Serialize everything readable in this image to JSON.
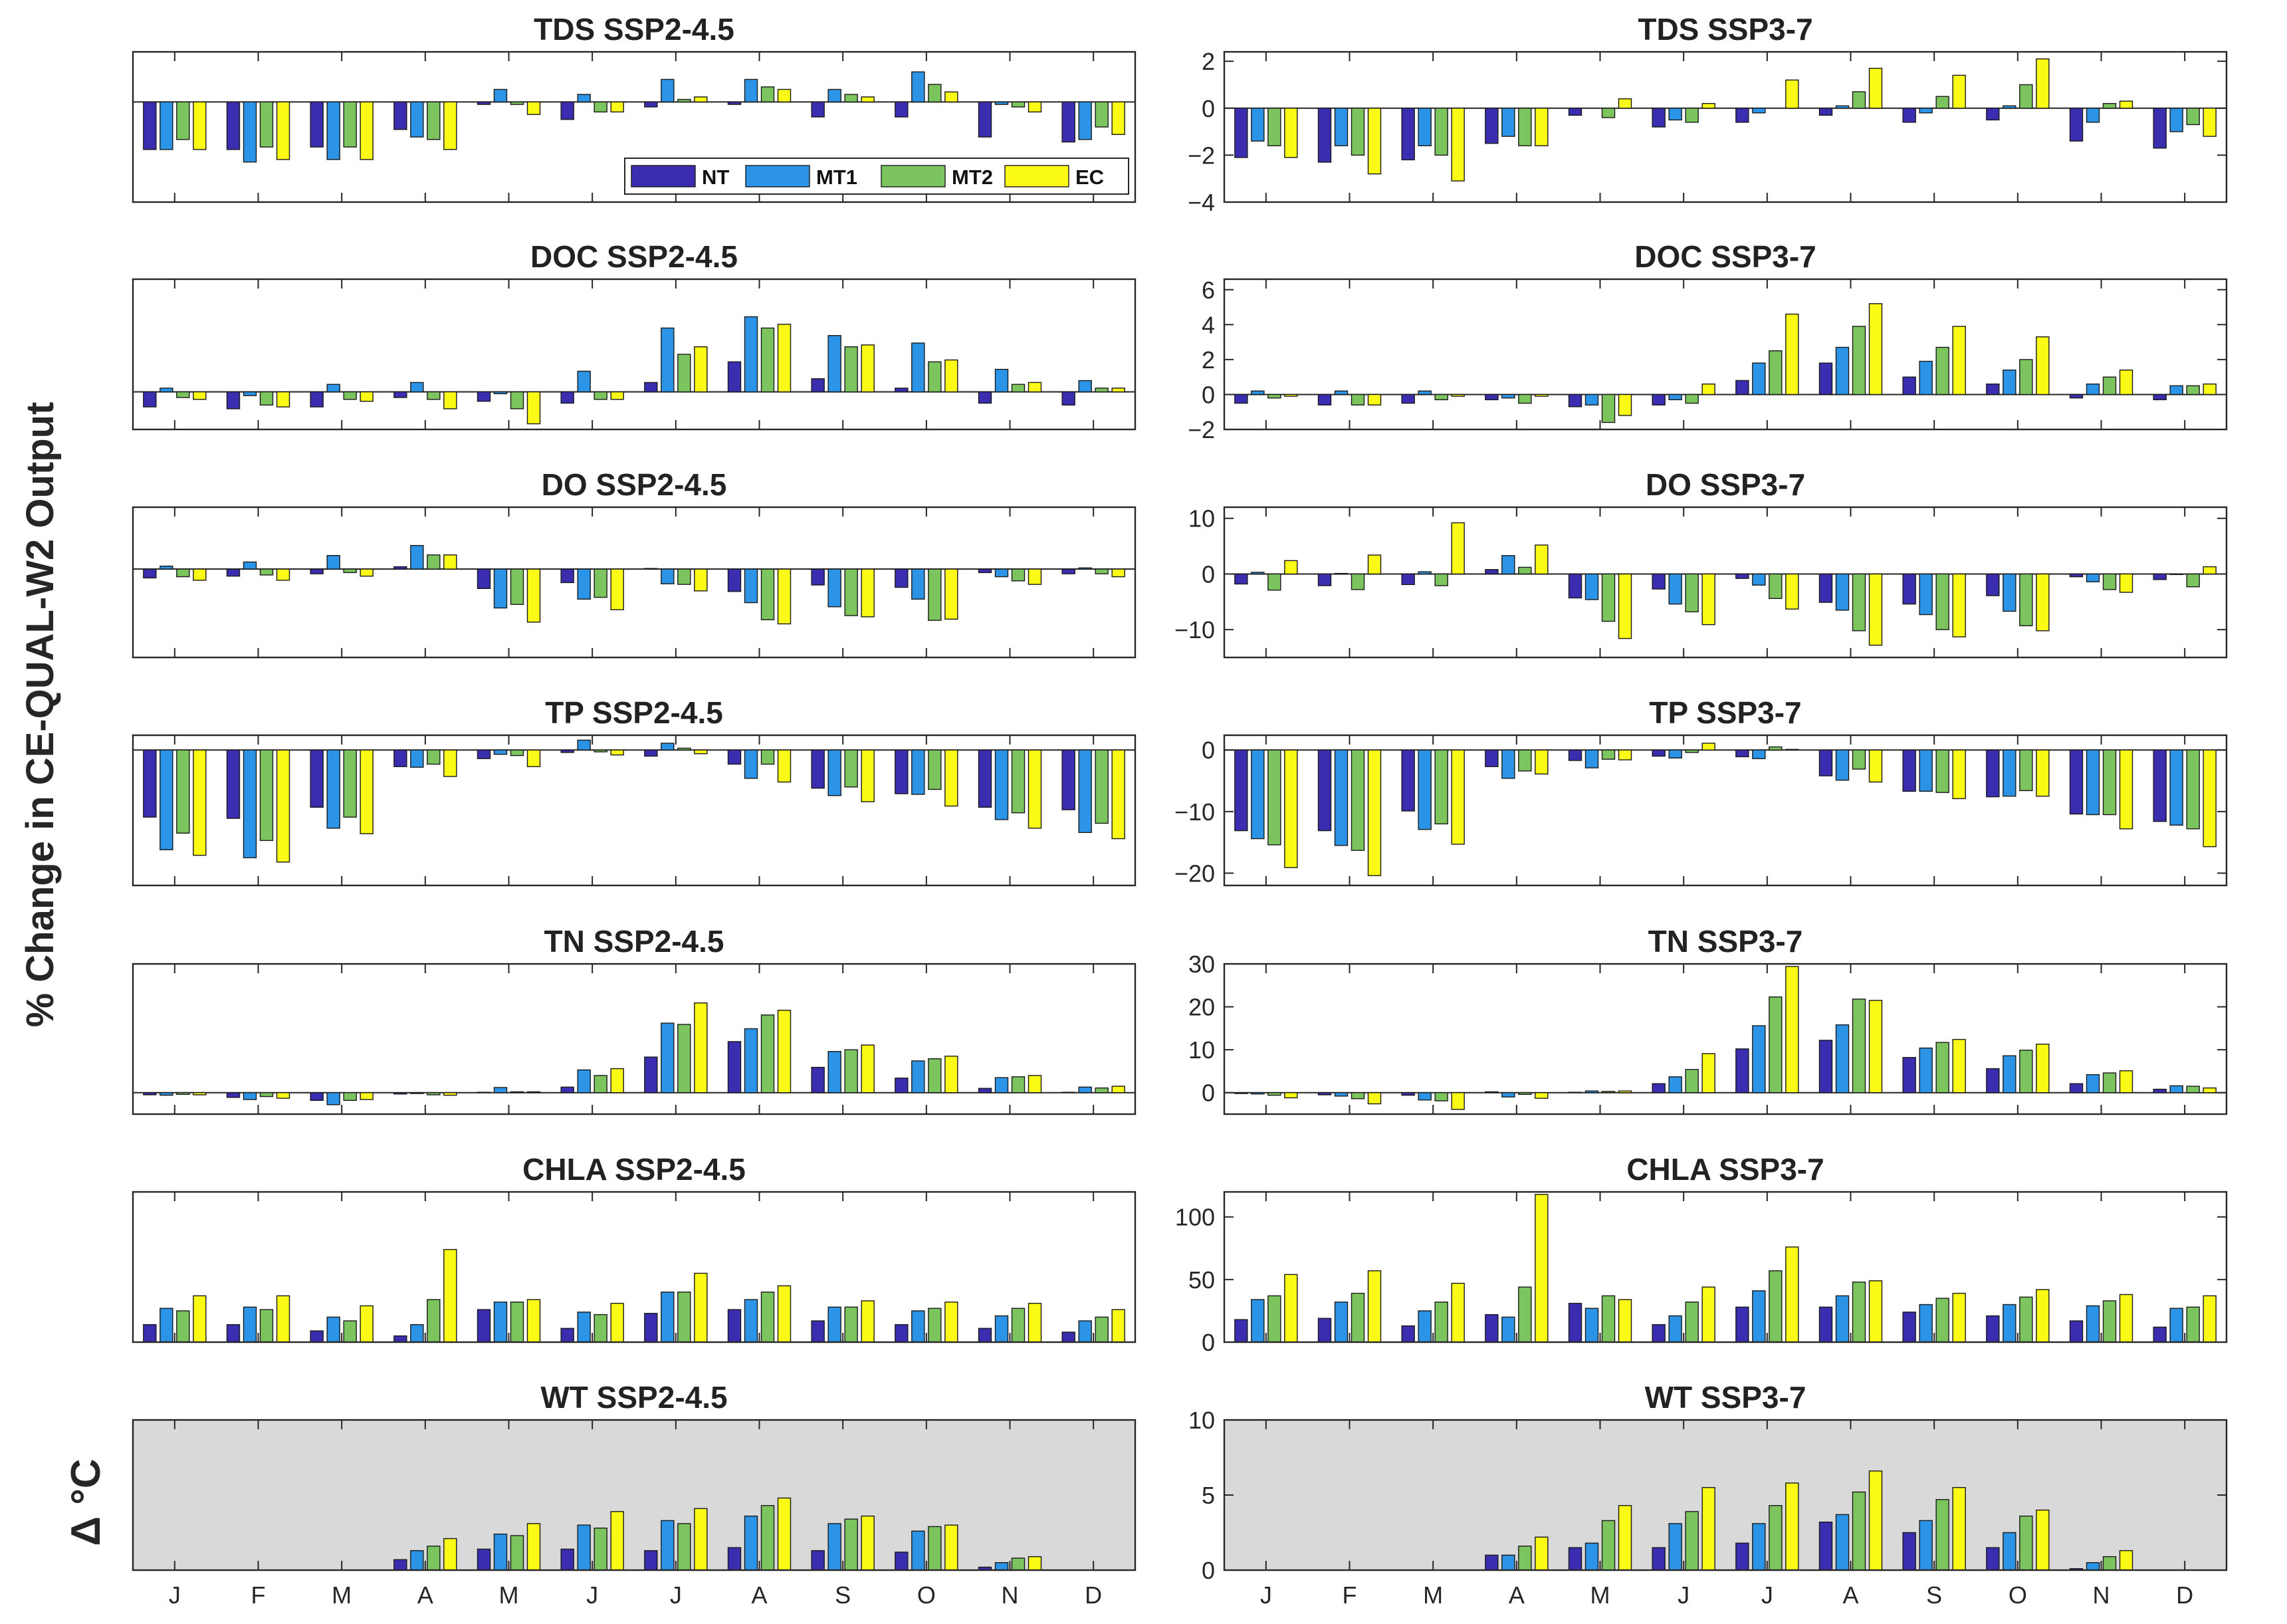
{
  "figure": {
    "ylabel": "% Change in CE-QUAL-W2 Output",
    "ylabel_wt": "Δ °C"
  },
  "legend": {
    "series": [
      "NT",
      "MT1",
      "MT2",
      "EC"
    ],
    "colors": [
      "#3b2db0",
      "#2c94e6",
      "#7cc45e",
      "#fbfa16"
    ]
  },
  "months": [
    "J",
    "F",
    "M",
    "A",
    "M",
    "J",
    "J",
    "A",
    "S",
    "O",
    "N",
    "D"
  ],
  "chart_data": [
    {
      "type": "bar",
      "title": "TDS SSP2-4.5",
      "ylim": [
        -4,
        2
      ],
      "yticks": [],
      "shade": false,
      "legend": true,
      "series": [
        {
          "name": "NT",
          "values": [
            -1.9,
            -1.9,
            -1.8,
            -1.1,
            -0.1,
            -0.7,
            -0.2,
            -0.1,
            -0.6,
            -0.6,
            -1.4,
            -1.6
          ]
        },
        {
          "name": "MT1",
          "values": [
            -1.9,
            -2.4,
            -2.3,
            -1.4,
            0.5,
            0.3,
            0.9,
            0.9,
            0.5,
            1.2,
            -0.1,
            -1.5
          ]
        },
        {
          "name": "MT2",
          "values": [
            -1.5,
            -1.8,
            -1.8,
            -1.5,
            -0.1,
            -0.4,
            0.1,
            0.6,
            0.3,
            0.7,
            -0.2,
            -1.0
          ]
        },
        {
          "name": "EC",
          "values": [
            -1.9,
            -2.3,
            -2.3,
            -1.9,
            -0.5,
            -0.4,
            0.2,
            0.5,
            0.2,
            0.4,
            -0.4,
            -1.3
          ]
        }
      ]
    },
    {
      "type": "bar",
      "title": "TDS SSP3-7",
      "ylim": [
        -4,
        2.4
      ],
      "yticks": [
        2,
        0,
        -2,
        -4
      ],
      "shade": false,
      "legend": false,
      "series": [
        {
          "name": "NT",
          "values": [
            -2.1,
            -2.3,
            -2.2,
            -1.5,
            -0.3,
            -0.8,
            -0.6,
            -0.3,
            -0.6,
            -0.5,
            -1.4,
            -1.7
          ]
        },
        {
          "name": "MT1",
          "values": [
            -1.4,
            -1.6,
            -1.6,
            -1.2,
            0.0,
            -0.5,
            -0.2,
            0.1,
            -0.2,
            0.1,
            -0.6,
            -1.0
          ]
        },
        {
          "name": "MT2",
          "values": [
            -1.6,
            -2.0,
            -2.0,
            -1.6,
            -0.4,
            -0.6,
            0.0,
            0.7,
            0.5,
            1.0,
            0.2,
            -0.7
          ]
        },
        {
          "name": "EC",
          "values": [
            -2.1,
            -2.8,
            -3.1,
            -1.6,
            0.4,
            0.2,
            1.2,
            1.7,
            1.4,
            2.1,
            0.3,
            -1.2
          ]
        }
      ]
    },
    {
      "type": "bar",
      "title": "DOC SSP2-4.5",
      "ylim": [
        -2,
        6
      ],
      "yticks": [],
      "shade": false,
      "legend": false,
      "series": [
        {
          "name": "NT",
          "values": [
            -0.8,
            -0.9,
            -0.8,
            -0.3,
            -0.5,
            -0.6,
            0.5,
            1.6,
            0.7,
            0.2,
            -0.6,
            -0.7
          ]
        },
        {
          "name": "MT1",
          "values": [
            0.2,
            -0.2,
            0.4,
            0.5,
            -0.1,
            1.1,
            3.4,
            4.0,
            3.0,
            2.6,
            1.2,
            0.6
          ]
        },
        {
          "name": "MT2",
          "values": [
            -0.3,
            -0.7,
            -0.4,
            -0.4,
            -0.9,
            -0.4,
            2.0,
            3.4,
            2.4,
            1.6,
            0.4,
            0.2
          ]
        },
        {
          "name": "EC",
          "values": [
            -0.4,
            -0.8,
            -0.5,
            -0.9,
            -1.7,
            -0.4,
            2.4,
            3.6,
            2.5,
            1.7,
            0.5,
            0.2
          ]
        }
      ]
    },
    {
      "type": "bar",
      "title": "DOC SSP3-7",
      "ylim": [
        -2,
        6.6
      ],
      "yticks": [
        6,
        4,
        2,
        0,
        -2
      ],
      "shade": false,
      "legend": false,
      "series": [
        {
          "name": "NT",
          "values": [
            -0.5,
            -0.6,
            -0.5,
            -0.3,
            -0.7,
            -0.6,
            0.8,
            1.8,
            1.0,
            0.6,
            -0.2,
            -0.3
          ]
        },
        {
          "name": "MT1",
          "values": [
            0.2,
            0.2,
            0.2,
            -0.2,
            -0.6,
            -0.3,
            1.8,
            2.7,
            1.9,
            1.4,
            0.6,
            0.5
          ]
        },
        {
          "name": "MT2",
          "values": [
            -0.2,
            -0.6,
            -0.3,
            -0.5,
            -1.6,
            -0.5,
            2.5,
            3.9,
            2.7,
            2.0,
            1.0,
            0.5
          ]
        },
        {
          "name": "EC",
          "values": [
            -0.1,
            -0.6,
            -0.1,
            -0.1,
            -1.2,
            0.6,
            4.6,
            5.2,
            3.9,
            3.3,
            1.4,
            0.6
          ]
        }
      ]
    },
    {
      "type": "bar",
      "title": "DO SSP2-4.5",
      "ylim": [
        -15,
        10.5
      ],
      "yticks": [],
      "shade": false,
      "legend": false,
      "series": [
        {
          "name": "NT",
          "values": [
            -1.5,
            -1.2,
            -0.8,
            0.4,
            -3.3,
            -2.3,
            0.1,
            -3.8,
            -2.7,
            -3.1,
            -0.6,
            -0.8
          ]
        },
        {
          "name": "MT1",
          "values": [
            0.5,
            1.2,
            2.3,
            4.0,
            -6.6,
            -5.1,
            -2.5,
            -5.7,
            -6.4,
            -5.1,
            -1.3,
            0.2
          ]
        },
        {
          "name": "MT2",
          "values": [
            -1.3,
            -1.0,
            -0.6,
            2.4,
            -6.0,
            -4.8,
            -2.6,
            -8.6,
            -7.9,
            -8.7,
            -2.0,
            -0.8
          ]
        },
        {
          "name": "EC",
          "values": [
            -1.9,
            -1.9,
            -1.2,
            2.4,
            -9.0,
            -6.9,
            -3.7,
            -9.3,
            -8.1,
            -8.5,
            -2.6,
            -1.3
          ]
        }
      ]
    },
    {
      "type": "bar",
      "title": "DO SSP3-7",
      "ylim": [
        -15,
        12
      ],
      "yticks": [
        10,
        0,
        -10
      ],
      "shade": false,
      "legend": false,
      "series": [
        {
          "name": "NT",
          "values": [
            -1.8,
            -2.1,
            -1.9,
            0.8,
            -4.3,
            -2.7,
            -0.8,
            -5.1,
            -5.4,
            -3.9,
            -0.5,
            -1.0
          ]
        },
        {
          "name": "MT1",
          "values": [
            0.3,
            0.1,
            0.4,
            3.3,
            -4.6,
            -5.4,
            -2.0,
            -6.5,
            -7.3,
            -6.7,
            -1.4,
            -0.1
          ]
        },
        {
          "name": "MT2",
          "values": [
            -2.9,
            -2.8,
            -2.1,
            1.2,
            -8.5,
            -6.8,
            -4.4,
            -10.2,
            -10.0,
            -9.3,
            -2.8,
            -2.3
          ]
        },
        {
          "name": "EC",
          "values": [
            2.4,
            3.4,
            9.2,
            5.2,
            -11.6,
            -9.1,
            -6.3,
            -12.8,
            -11.3,
            -10.2,
            -3.3,
            1.3
          ]
        }
      ]
    },
    {
      "type": "bar",
      "title": "TP SSP2-4.5",
      "ylim": [
        -22,
        2.4
      ],
      "yticks": [],
      "shade": false,
      "legend": false,
      "series": [
        {
          "name": "NT",
          "values": [
            -10.9,
            -11.1,
            -9.3,
            -2.7,
            -1.4,
            -0.4,
            -1.0,
            -2.3,
            -6.2,
            -7.1,
            -9.3,
            -9.7
          ]
        },
        {
          "name": "MT1",
          "values": [
            -16.2,
            -17.5,
            -12.7,
            -2.8,
            -0.7,
            1.6,
            1.1,
            -4.6,
            -7.4,
            -7.2,
            -11.3,
            -13.4
          ]
        },
        {
          "name": "MT2",
          "values": [
            -13.5,
            -14.7,
            -10.9,
            -2.3,
            -0.9,
            -0.3,
            0.3,
            -2.3,
            -6.0,
            -6.4,
            -10.2,
            -11.9
          ]
        },
        {
          "name": "EC",
          "values": [
            -17.1,
            -18.2,
            -13.6,
            -4.3,
            -2.7,
            -0.8,
            -0.6,
            -5.2,
            -8.4,
            -9.1,
            -12.7,
            -14.4
          ]
        }
      ]
    },
    {
      "type": "bar",
      "title": "TP SSP3-7",
      "ylim": [
        -22,
        2.4
      ],
      "yticks": [
        0,
        -10,
        -20
      ],
      "shade": false,
      "legend": false,
      "series": [
        {
          "name": "NT",
          "values": [
            -13.1,
            -13.1,
            -9.9,
            -2.7,
            -1.7,
            -1.0,
            -1.1,
            -4.2,
            -6.7,
            -7.6,
            -10.4,
            -11.6
          ]
        },
        {
          "name": "MT1",
          "values": [
            -14.4,
            -15.5,
            -12.9,
            -4.6,
            -2.9,
            -1.3,
            -1.4,
            -4.9,
            -6.7,
            -7.5,
            -10.5,
            -12.2
          ]
        },
        {
          "name": "MT2",
          "values": [
            -15.4,
            -16.3,
            -12.0,
            -3.4,
            -1.5,
            -0.4,
            0.5,
            -3.1,
            -6.9,
            -6.6,
            -10.5,
            -12.8
          ]
        },
        {
          "name": "EC",
          "values": [
            -19.1,
            -20.4,
            -15.3,
            -3.9,
            -1.6,
            1.1,
            0.1,
            -5.2,
            -7.9,
            -7.5,
            -12.8,
            -15.7
          ]
        }
      ]
    },
    {
      "type": "bar",
      "title": "TN SSP2-4.5",
      "ylim": [
        -5,
        30
      ],
      "yticks": [],
      "shade": false,
      "legend": false,
      "series": [
        {
          "name": "NT",
          "values": [
            -0.5,
            -1.1,
            -1.8,
            -0.3,
            0.1,
            1.3,
            8.3,
            11.9,
            5.9,
            3.4,
            1.0,
            0.1
          ]
        },
        {
          "name": "MT1",
          "values": [
            -0.6,
            -1.6,
            -2.8,
            -0.2,
            1.2,
            5.3,
            16.2,
            14.9,
            9.6,
            7.4,
            3.5,
            1.3
          ]
        },
        {
          "name": "MT2",
          "values": [
            -0.4,
            -0.9,
            -1.8,
            -0.5,
            0.2,
            4.0,
            15.9,
            18.1,
            10.0,
            7.9,
            3.7,
            1.1
          ]
        },
        {
          "name": "EC",
          "values": [
            -0.5,
            -1.3,
            -1.6,
            -0.6,
            0.2,
            5.6,
            20.9,
            19.2,
            11.1,
            8.5,
            4.0,
            1.5
          ]
        }
      ]
    },
    {
      "type": "bar",
      "title": "TN SSP3-7",
      "ylim": [
        -5,
        30
      ],
      "yticks": [
        30,
        20,
        10,
        0
      ],
      "shade": false,
      "legend": false,
      "series": [
        {
          "name": "NT",
          "values": [
            -0.2,
            -0.5,
            -0.6,
            0.2,
            0.1,
            2.1,
            10.2,
            12.2,
            8.2,
            5.6,
            2.1,
            0.8
          ]
        },
        {
          "name": "MT1",
          "values": [
            -0.3,
            -0.8,
            -1.7,
            -1.0,
            0.4,
            3.7,
            15.6,
            15.8,
            10.4,
            8.6,
            4.2,
            1.6
          ]
        },
        {
          "name": "MT2",
          "values": [
            -0.6,
            -1.4,
            -1.9,
            -0.4,
            0.3,
            5.4,
            22.3,
            21.8,
            11.7,
            9.9,
            4.6,
            1.5
          ]
        },
        {
          "name": "EC",
          "values": [
            -1.2,
            -2.6,
            -3.9,
            -1.3,
            0.4,
            9.1,
            29.4,
            21.5,
            12.4,
            11.3,
            5.1,
            1.1
          ]
        }
      ]
    },
    {
      "type": "bar",
      "title": "CHLA SSP2-4.5",
      "ylim": [
        0,
        120
      ],
      "yticks": [],
      "shade": false,
      "legend": false,
      "series": [
        {
          "name": "NT",
          "values": [
            14,
            14,
            9,
            5,
            26,
            11,
            23,
            26,
            17,
            14,
            11,
            8
          ]
        },
        {
          "name": "MT1",
          "values": [
            27,
            28,
            20,
            14,
            32,
            24,
            40,
            34,
            28,
            25,
            21,
            17
          ]
        },
        {
          "name": "MT2",
          "values": [
            25,
            26,
            17,
            34,
            32,
            22,
            40,
            40,
            28,
            27,
            27,
            20
          ]
        },
        {
          "name": "EC",
          "values": [
            37,
            37,
            29,
            74,
            34,
            31,
            55,
            45,
            33,
            32,
            31,
            26
          ]
        }
      ]
    },
    {
      "type": "bar",
      "title": "CHLA SSP3-7",
      "ylim": [
        0,
        120
      ],
      "yticks": [
        100,
        50,
        0
      ],
      "shade": false,
      "legend": false,
      "series": [
        {
          "name": "NT",
          "values": [
            18,
            19,
            13,
            22,
            31,
            14,
            28,
            28,
            24,
            21,
            17,
            12
          ]
        },
        {
          "name": "MT1",
          "values": [
            34,
            32,
            25,
            20,
            27,
            21,
            41,
            37,
            30,
            30,
            29,
            27
          ]
        },
        {
          "name": "MT2",
          "values": [
            37,
            39,
            32,
            44,
            37,
            32,
            57,
            48,
            35,
            36,
            33,
            28
          ]
        },
        {
          "name": "EC",
          "values": [
            54,
            57,
            47,
            118,
            34,
            44,
            76,
            49,
            39,
            42,
            38,
            37
          ]
        }
      ]
    },
    {
      "type": "bar",
      "title": "WT SSP2-4.5",
      "ylim": [
        0,
        10
      ],
      "yticks": [],
      "shade": true,
      "legend": false,
      "series": [
        {
          "name": "NT",
          "values": [
            0,
            0,
            0,
            0.7,
            1.4,
            1.4,
            1.3,
            1.5,
            1.3,
            1.2,
            0.2,
            0
          ]
        },
        {
          "name": "MT1",
          "values": [
            0,
            0,
            0,
            1.3,
            2.4,
            3.0,
            3.3,
            3.6,
            3.1,
            2.6,
            0.5,
            0
          ]
        },
        {
          "name": "MT2",
          "values": [
            0,
            0,
            0,
            1.6,
            2.3,
            2.8,
            3.1,
            4.3,
            3.4,
            2.9,
            0.8,
            0
          ]
        },
        {
          "name": "EC",
          "values": [
            0,
            0,
            0,
            2.1,
            3.1,
            3.9,
            4.1,
            4.8,
            3.6,
            3.0,
            0.9,
            0
          ]
        }
      ]
    },
    {
      "type": "bar",
      "title": "WT SSP3-7",
      "ylim": [
        0,
        10
      ],
      "yticks": [
        10,
        5,
        0
      ],
      "shade": true,
      "legend": false,
      "series": [
        {
          "name": "NT",
          "values": [
            0,
            0,
            0,
            1.0,
            1.5,
            1.5,
            1.8,
            3.2,
            2.5,
            1.5,
            0.1,
            0
          ]
        },
        {
          "name": "MT1",
          "values": [
            0,
            0,
            0,
            1.0,
            1.8,
            3.1,
            3.1,
            3.7,
            3.3,
            2.5,
            0.5,
            0
          ]
        },
        {
          "name": "MT2",
          "values": [
            0,
            0,
            0,
            1.6,
            3.3,
            3.9,
            4.3,
            5.2,
            4.7,
            3.6,
            0.9,
            0
          ]
        },
        {
          "name": "EC",
          "values": [
            0,
            0,
            0,
            2.2,
            4.3,
            5.5,
            5.8,
            6.6,
            5.5,
            4.0,
            1.3,
            0
          ]
        }
      ]
    }
  ]
}
